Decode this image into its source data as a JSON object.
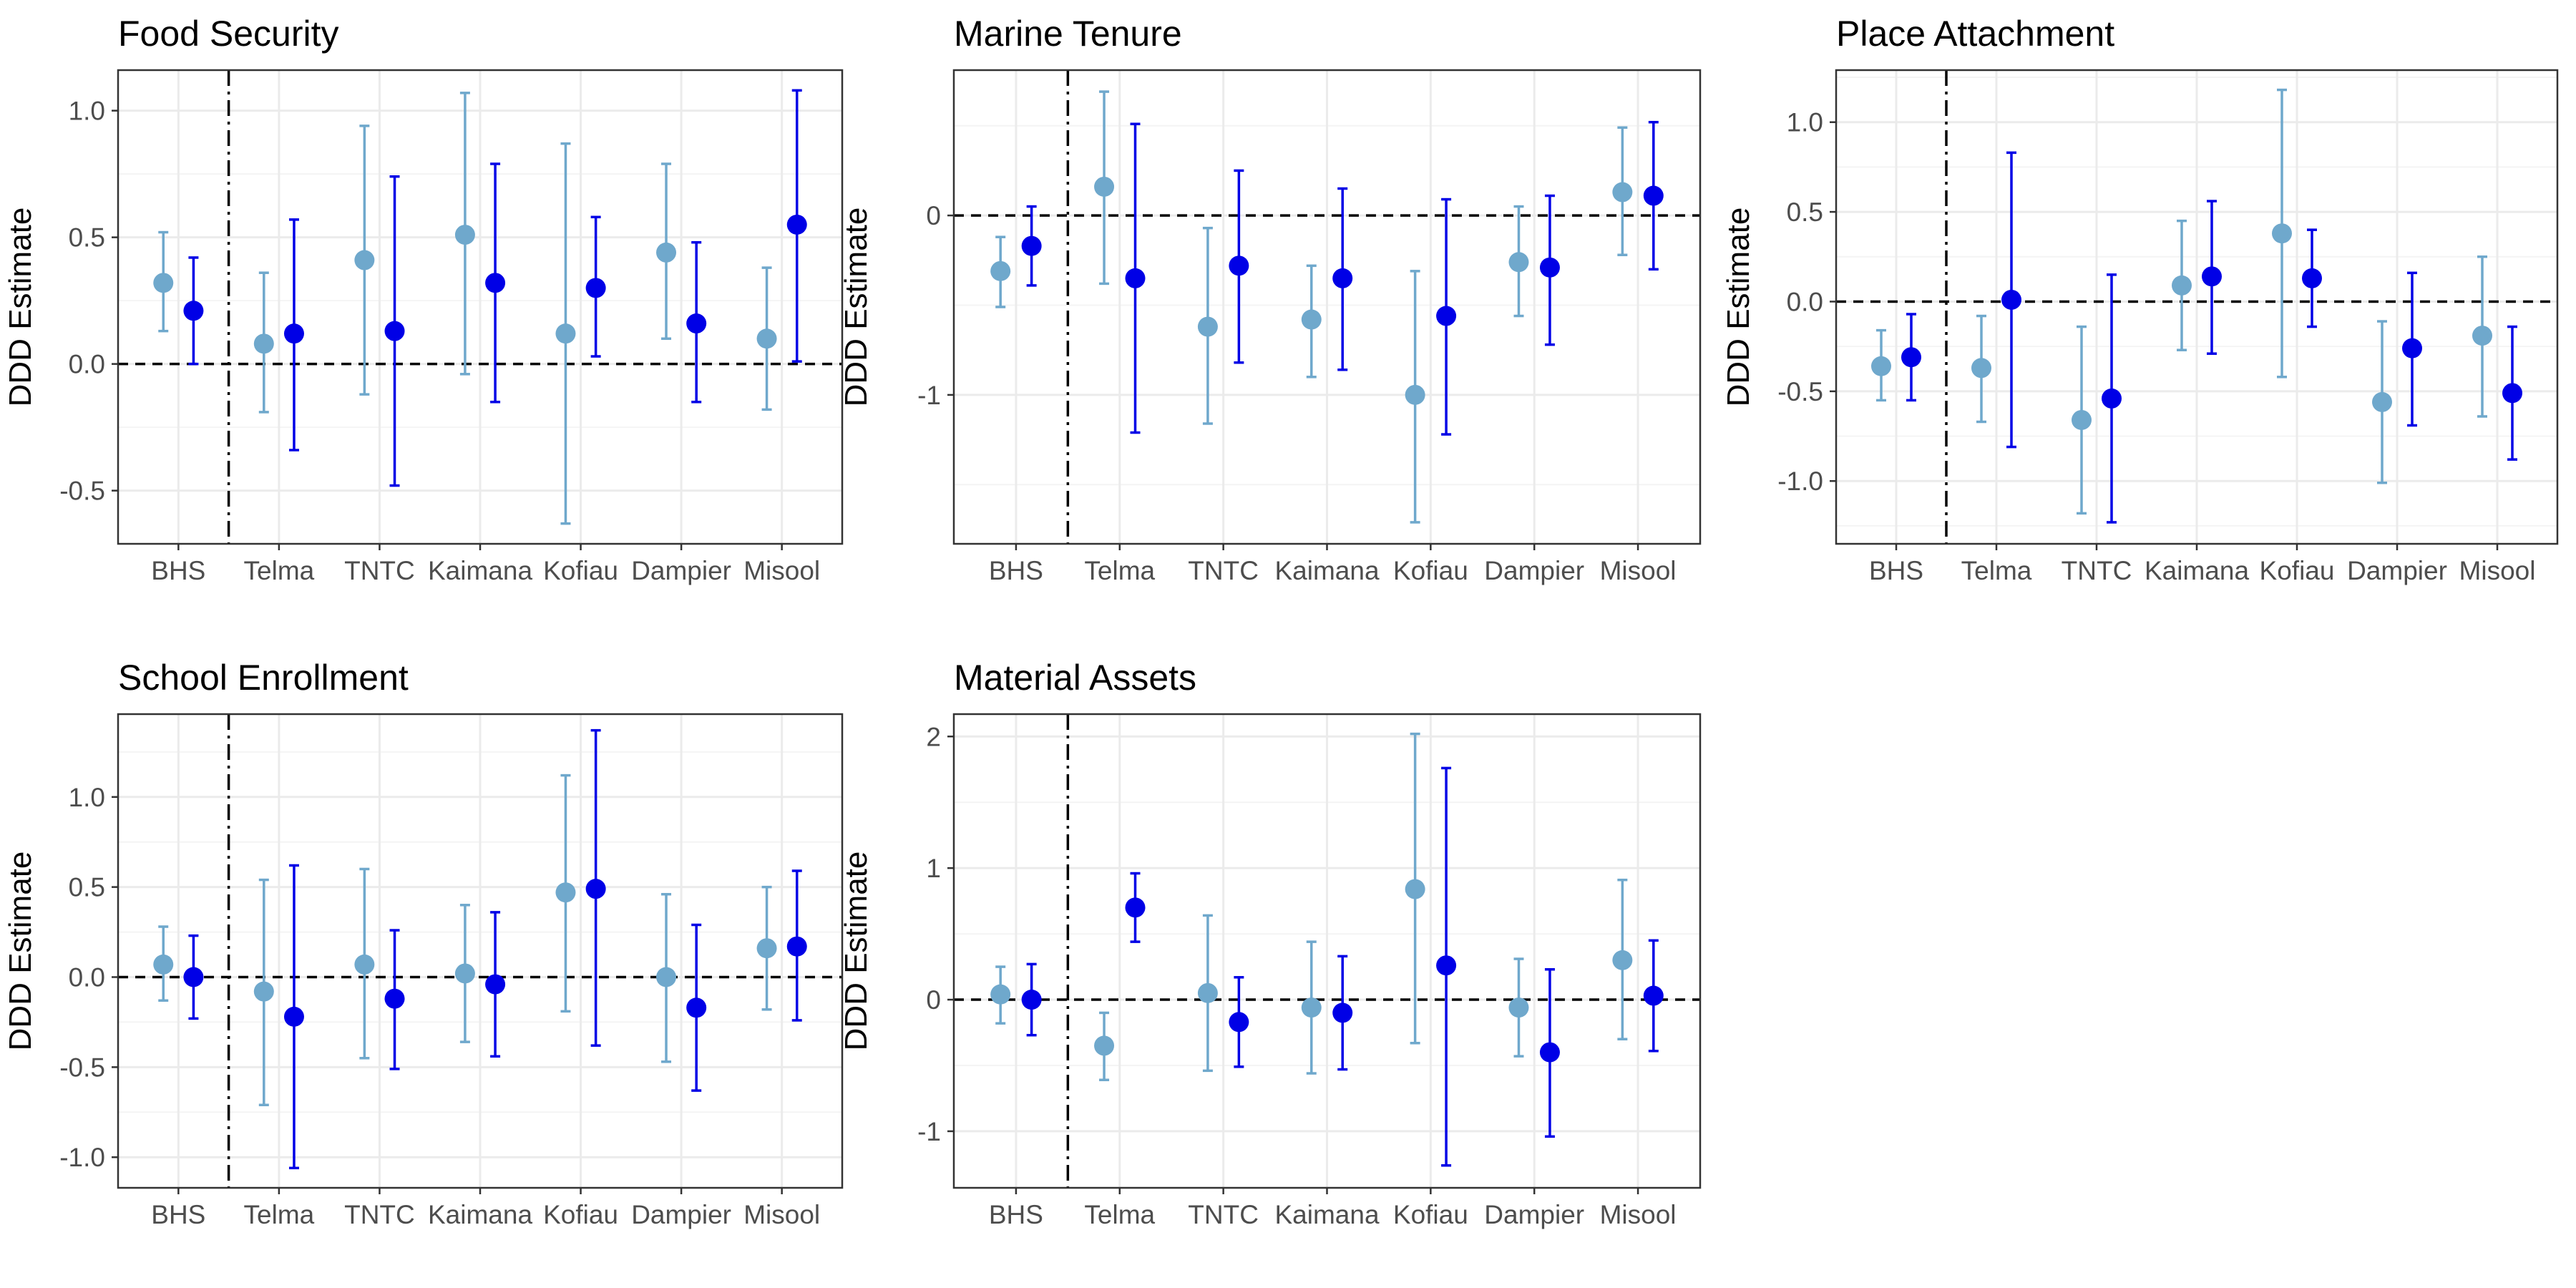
{
  "figure": {
    "background": "#ffffff",
    "colors": {
      "series_light": "#6fa8cc",
      "series_dark": "#0000e6",
      "grid_major": "#ebebeb",
      "grid_minor": "#f4f4f4",
      "panel_border": "#333333",
      "reference_line": "#000000"
    }
  },
  "chart_data": [
    {
      "type": "scatter",
      "title": "Food Security",
      "ylabel": "DDD Estimate",
      "xlabel": "",
      "categories": [
        "BHS",
        "Telma",
        "TNTC",
        "Kaimana",
        "Kofiau",
        "Dampier",
        "Misool"
      ],
      "ylim": [
        -0.71,
        1.16
      ],
      "yticks": [
        -0.5,
        0.0,
        0.5,
        1.0
      ],
      "ytick_labels": [
        "-0.5",
        "0.0",
        "0.5",
        "1.0"
      ],
      "grid": true,
      "reference_lines": {
        "horizontal_dashed": 0,
        "vertical_dotdash_after_category": "BHS"
      },
      "series": [
        {
          "color": "#6fa8cc",
          "values": [
            0.32,
            0.08,
            0.41,
            0.51,
            0.12,
            0.44,
            0.1
          ],
          "lower": [
            0.13,
            -0.19,
            -0.12,
            -0.04,
            -0.63,
            0.1,
            -0.18
          ],
          "upper": [
            0.52,
            0.36,
            0.94,
            1.07,
            0.87,
            0.79,
            0.38
          ]
        },
        {
          "color": "#0000e6",
          "values": [
            0.21,
            0.12,
            0.13,
            0.32,
            0.3,
            0.16,
            0.55
          ],
          "lower": [
            0.0,
            -0.34,
            -0.48,
            -0.15,
            0.03,
            -0.15,
            0.01
          ],
          "upper": [
            0.42,
            0.57,
            0.74,
            0.79,
            0.58,
            0.48,
            1.08
          ]
        }
      ]
    },
    {
      "type": "scatter",
      "title": "Marine Tenure",
      "ylabel": "DDD Estimate",
      "xlabel": "",
      "categories": [
        "BHS",
        "Telma",
        "TNTC",
        "Kaimana",
        "Kofiau",
        "Dampier",
        "Misool"
      ],
      "ylim": [
        -1.83,
        0.81
      ],
      "yticks": [
        -1,
        0
      ],
      "ytick_labels": [
        "-1",
        "0"
      ],
      "grid": true,
      "reference_lines": {
        "horizontal_dashed": 0,
        "vertical_dotdash_after_category": "BHS"
      },
      "series": [
        {
          "color": "#6fa8cc",
          "values": [
            -0.31,
            0.16,
            -0.62,
            -0.58,
            -1.0,
            -0.26,
            0.13
          ],
          "lower": [
            -0.51,
            -0.38,
            -1.16,
            -0.9,
            -1.71,
            -0.56,
            -0.22
          ],
          "upper": [
            -0.12,
            0.69,
            -0.07,
            -0.28,
            -0.31,
            0.05,
            0.49
          ]
        },
        {
          "color": "#0000e6",
          "values": [
            -0.17,
            -0.35,
            -0.28,
            -0.35,
            -0.56,
            -0.29,
            0.11
          ],
          "lower": [
            -0.39,
            -1.21,
            -0.82,
            -0.86,
            -1.22,
            -0.72,
            -0.3
          ],
          "upper": [
            0.05,
            0.51,
            0.25,
            0.15,
            0.09,
            0.11,
            0.52
          ]
        }
      ]
    },
    {
      "type": "scatter",
      "title": "Place Attachment",
      "ylabel": "DDD Estimate",
      "xlabel": "",
      "categories": [
        "BHS",
        "Telma",
        "TNTC",
        "Kaimana",
        "Kofiau",
        "Dampier",
        "Misool"
      ],
      "ylim": [
        -1.35,
        1.29
      ],
      "yticks": [
        -1.0,
        -0.5,
        0.0,
        0.5,
        1.0
      ],
      "ytick_labels": [
        "-1.0",
        "-0.5",
        "0.0",
        "0.5",
        "1.0"
      ],
      "grid": true,
      "reference_lines": {
        "horizontal_dashed": 0,
        "vertical_dotdash_after_category": "BHS"
      },
      "series": [
        {
          "color": "#6fa8cc",
          "values": [
            -0.36,
            -0.37,
            -0.66,
            0.09,
            0.38,
            -0.56,
            -0.19
          ],
          "lower": [
            -0.55,
            -0.67,
            -1.18,
            -0.27,
            -0.42,
            -1.01,
            -0.64
          ],
          "upper": [
            -0.16,
            -0.08,
            -0.14,
            0.45,
            1.18,
            -0.11,
            0.25
          ]
        },
        {
          "color": "#0000e6",
          "values": [
            -0.31,
            0.01,
            -0.54,
            0.14,
            0.13,
            -0.26,
            -0.51
          ],
          "lower": [
            -0.55,
            -0.81,
            -1.23,
            -0.29,
            -0.14,
            -0.69,
            -0.88
          ],
          "upper": [
            -0.07,
            0.83,
            0.15,
            0.56,
            0.4,
            0.16,
            -0.14
          ]
        }
      ]
    },
    {
      "type": "scatter",
      "title": "School Enrollment",
      "ylabel": "DDD Estimate",
      "xlabel": "",
      "categories": [
        "BHS",
        "Telma",
        "TNTC",
        "Kaimana",
        "Kofiau",
        "Dampier",
        "Misool"
      ],
      "ylim": [
        -1.17,
        1.46
      ],
      "yticks": [
        -1.0,
        -0.5,
        0.0,
        0.5,
        1.0
      ],
      "ytick_labels": [
        "-1.0",
        "-0.5",
        "0.0",
        "0.5",
        "1.0"
      ],
      "grid": true,
      "reference_lines": {
        "horizontal_dashed": 0,
        "vertical_dotdash_after_category": "BHS"
      },
      "series": [
        {
          "color": "#6fa8cc",
          "values": [
            0.07,
            -0.08,
            0.07,
            0.02,
            0.47,
            0.0,
            0.16
          ],
          "lower": [
            -0.13,
            -0.71,
            -0.45,
            -0.36,
            -0.19,
            -0.47,
            -0.18
          ],
          "upper": [
            0.28,
            0.54,
            0.6,
            0.4,
            1.12,
            0.46,
            0.5
          ]
        },
        {
          "color": "#0000e6",
          "values": [
            0.0,
            -0.22,
            -0.12,
            -0.04,
            0.49,
            -0.17,
            0.17
          ],
          "lower": [
            -0.23,
            -1.06,
            -0.51,
            -0.44,
            -0.38,
            -0.63,
            -0.24
          ],
          "upper": [
            0.23,
            0.62,
            0.26,
            0.36,
            1.37,
            0.29,
            0.59
          ]
        }
      ]
    },
    {
      "type": "scatter",
      "title": "Material Assets",
      "ylabel": "DDD Estimate",
      "xlabel": "",
      "categories": [
        "BHS",
        "Telma",
        "TNTC",
        "Kaimana",
        "Kofiau",
        "Dampier",
        "Misool"
      ],
      "ylim": [
        -1.43,
        2.17
      ],
      "yticks": [
        -1,
        0,
        1,
        2
      ],
      "ytick_labels": [
        "-1",
        "0",
        "1",
        "2"
      ],
      "grid": true,
      "reference_lines": {
        "horizontal_dashed": 0,
        "vertical_dotdash_after_category": "BHS"
      },
      "series": [
        {
          "color": "#6fa8cc",
          "values": [
            0.04,
            -0.35,
            0.05,
            -0.06,
            0.84,
            -0.06,
            0.3
          ],
          "lower": [
            -0.18,
            -0.61,
            -0.54,
            -0.56,
            -0.33,
            -0.43,
            -0.3
          ],
          "upper": [
            0.25,
            -0.1,
            0.64,
            0.44,
            2.02,
            0.31,
            0.91
          ]
        },
        {
          "color": "#0000e6",
          "values": [
            0.0,
            0.7,
            -0.17,
            -0.1,
            0.26,
            -0.4,
            0.03
          ],
          "lower": [
            -0.27,
            0.44,
            -0.51,
            -0.53,
            -1.26,
            -1.04,
            -0.39
          ],
          "upper": [
            0.27,
            0.96,
            0.17,
            0.33,
            1.76,
            0.23,
            0.45
          ]
        }
      ]
    }
  ]
}
